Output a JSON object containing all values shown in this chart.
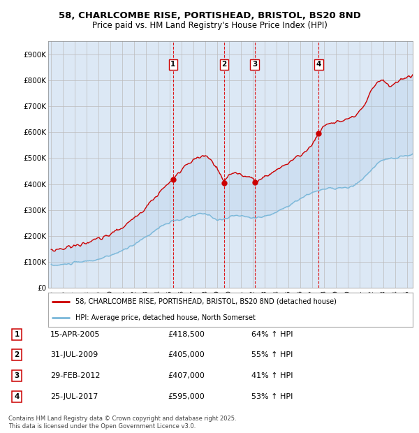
{
  "title": "58, CHARLCOMBE RISE, PORTISHEAD, BRISTOL, BS20 8ND",
  "subtitle": "Price paid vs. HM Land Registry's House Price Index (HPI)",
  "legend_line1": "58, CHARLCOMBE RISE, PORTISHEAD, BRISTOL, BS20 8ND (detached house)",
  "legend_line2": "HPI: Average price, detached house, North Somerset",
  "footer1": "Contains HM Land Registry data © Crown copyright and database right 2025.",
  "footer2": "This data is licensed under the Open Government Licence v3.0.",
  "transactions": [
    {
      "num": 1,
      "date": "15-APR-2005",
      "price": "£418,500",
      "hpi": "64% ↑ HPI",
      "year": 2005.29
    },
    {
      "num": 2,
      "date": "31-JUL-2009",
      "price": "£405,000",
      "hpi": "55% ↑ HPI",
      "year": 2009.58
    },
    {
      "num": 3,
      "date": "29-FEB-2012",
      "price": "£407,000",
      "hpi": "41% ↑ HPI",
      "year": 2012.16
    },
    {
      "num": 4,
      "date": "25-JUL-2017",
      "price": "£595,000",
      "hpi": "53% ↑ HPI",
      "year": 2017.56
    }
  ],
  "hpi_color": "#7ab8d9",
  "price_color": "#cc0000",
  "fill_color": "#ddeeff",
  "grid_color": "#cccccc",
  "vline_color": "#dd0000",
  "dot_color": "#cc0000",
  "ylim": [
    0,
    950000
  ],
  "xlim": [
    1994.75,
    2025.5
  ],
  "hpi_base_points": [
    [
      1995.0,
      88000
    ],
    [
      1995.5,
      87000
    ],
    [
      1996.0,
      90000
    ],
    [
      1996.5,
      93000
    ],
    [
      1997.0,
      97000
    ],
    [
      1997.5,
      100000
    ],
    [
      1998.0,
      103000
    ],
    [
      1998.5,
      106000
    ],
    [
      1999.0,
      110000
    ],
    [
      1999.5,
      117000
    ],
    [
      2000.0,
      125000
    ],
    [
      2000.5,
      135000
    ],
    [
      2001.0,
      143000
    ],
    [
      2001.5,
      155000
    ],
    [
      2002.0,
      168000
    ],
    [
      2002.5,
      183000
    ],
    [
      2003.0,
      197000
    ],
    [
      2003.5,
      213000
    ],
    [
      2004.0,
      228000
    ],
    [
      2004.5,
      244000
    ],
    [
      2005.0,
      252000
    ],
    [
      2005.5,
      258000
    ],
    [
      2006.0,
      264000
    ],
    [
      2006.5,
      272000
    ],
    [
      2007.0,
      278000
    ],
    [
      2007.5,
      285000
    ],
    [
      2008.0,
      286000
    ],
    [
      2008.5,
      277000
    ],
    [
      2009.0,
      262000
    ],
    [
      2009.5,
      263000
    ],
    [
      2010.0,
      272000
    ],
    [
      2010.5,
      279000
    ],
    [
      2011.0,
      278000
    ],
    [
      2011.5,
      273000
    ],
    [
      2012.0,
      271000
    ],
    [
      2012.5,
      272000
    ],
    [
      2013.0,
      275000
    ],
    [
      2013.5,
      282000
    ],
    [
      2014.0,
      292000
    ],
    [
      2014.5,
      305000
    ],
    [
      2015.0,
      317000
    ],
    [
      2015.5,
      330000
    ],
    [
      2016.0,
      342000
    ],
    [
      2016.5,
      356000
    ],
    [
      2017.0,
      367000
    ],
    [
      2017.5,
      375000
    ],
    [
      2018.0,
      380000
    ],
    [
      2018.5,
      383000
    ],
    [
      2019.0,
      383000
    ],
    [
      2019.5,
      385000
    ],
    [
      2020.0,
      385000
    ],
    [
      2020.5,
      392000
    ],
    [
      2021.0,
      408000
    ],
    [
      2021.5,
      430000
    ],
    [
      2022.0,
      455000
    ],
    [
      2022.5,
      478000
    ],
    [
      2023.0,
      492000
    ],
    [
      2023.5,
      497000
    ],
    [
      2024.0,
      500000
    ],
    [
      2024.5,
      505000
    ],
    [
      2025.0,
      510000
    ],
    [
      2025.5,
      512000
    ]
  ],
  "price_base_points": [
    [
      1995.0,
      145000
    ],
    [
      1995.5,
      148000
    ],
    [
      1996.0,
      152000
    ],
    [
      1996.5,
      158000
    ],
    [
      1997.0,
      162000
    ],
    [
      1997.5,
      168000
    ],
    [
      1998.0,
      175000
    ],
    [
      1998.5,
      182000
    ],
    [
      1999.0,
      188000
    ],
    [
      1999.5,
      196000
    ],
    [
      2000.0,
      207000
    ],
    [
      2000.5,
      220000
    ],
    [
      2001.0,
      233000
    ],
    [
      2001.5,
      250000
    ],
    [
      2002.0,
      268000
    ],
    [
      2002.5,
      290000
    ],
    [
      2003.0,
      312000
    ],
    [
      2003.5,
      338000
    ],
    [
      2004.0,
      360000
    ],
    [
      2004.5,
      385000
    ],
    [
      2005.0,
      405000
    ],
    [
      2005.3,
      418500
    ],
    [
      2005.5,
      430000
    ],
    [
      2006.0,
      455000
    ],
    [
      2006.5,
      475000
    ],
    [
      2007.0,
      492000
    ],
    [
      2007.5,
      503000
    ],
    [
      2008.0,
      508000
    ],
    [
      2008.5,
      490000
    ],
    [
      2009.0,
      460000
    ],
    [
      2009.6,
      405000
    ],
    [
      2009.8,
      420000
    ],
    [
      2010.0,
      435000
    ],
    [
      2010.5,
      445000
    ],
    [
      2011.0,
      438000
    ],
    [
      2011.5,
      430000
    ],
    [
      2012.0,
      420000
    ],
    [
      2012.2,
      407000
    ],
    [
      2012.5,
      415000
    ],
    [
      2013.0,
      428000
    ],
    [
      2013.5,
      440000
    ],
    [
      2014.0,
      455000
    ],
    [
      2014.5,
      468000
    ],
    [
      2015.0,
      482000
    ],
    [
      2015.5,
      495000
    ],
    [
      2016.0,
      510000
    ],
    [
      2016.5,
      530000
    ],
    [
      2017.0,
      550000
    ],
    [
      2017.6,
      595000
    ],
    [
      2017.8,
      610000
    ],
    [
      2018.0,
      625000
    ],
    [
      2018.5,
      635000
    ],
    [
      2019.0,
      638000
    ],
    [
      2019.5,
      642000
    ],
    [
      2020.0,
      645000
    ],
    [
      2020.5,
      658000
    ],
    [
      2021.0,
      675000
    ],
    [
      2021.5,
      705000
    ],
    [
      2022.0,
      760000
    ],
    [
      2022.5,
      795000
    ],
    [
      2023.0,
      800000
    ],
    [
      2023.5,
      775000
    ],
    [
      2024.0,
      785000
    ],
    [
      2024.5,
      805000
    ],
    [
      2025.0,
      810000
    ],
    [
      2025.5,
      820000
    ]
  ]
}
